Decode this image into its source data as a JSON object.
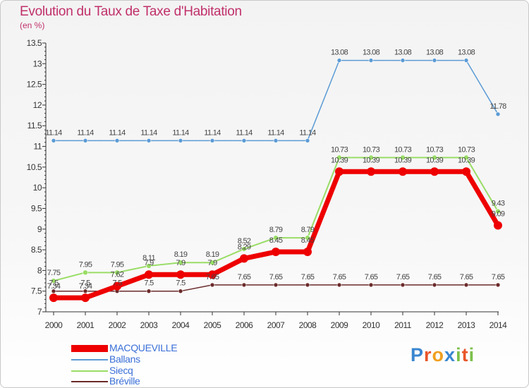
{
  "title": "Evolution du Taux de Taxe d'Habitation",
  "unit": "(en %)",
  "logo": {
    "letters": [
      "P",
      "r",
      "o",
      "x",
      "i",
      "t",
      "i"
    ],
    "colors": [
      "#3a86d0",
      "#e8552a",
      "#f0a020",
      "#3a86d0",
      "#7cc04a",
      "#e8552a",
      "#7cc04a"
    ]
  },
  "chart_data": {
    "type": "line",
    "title": "Evolution du Taux de Taxe d'Habitation",
    "ylabel": "(en %)",
    "xlabel": "",
    "x": [
      "2000",
      "2001",
      "2002",
      "2003",
      "2004",
      "2005",
      "2006",
      "2007",
      "2008",
      "2009",
      "2010",
      "2011",
      "2012",
      "2013",
      "2014"
    ],
    "ylim": [
      7,
      13.5
    ],
    "yticks": [
      "7",
      "7.5",
      "8",
      "8.5",
      "9",
      "9.5",
      "10",
      "10.5",
      "11",
      "11.5",
      "12",
      "12.5",
      "13",
      "13.5"
    ],
    "grid": false,
    "legend": "bottom-left",
    "series": [
      {
        "name": "MACQUEVILLE",
        "color": "#ee0000",
        "values": [
          7.34,
          7.34,
          7.62,
          7.9,
          7.9,
          7.9,
          8.29,
          8.45,
          8.45,
          10.39,
          10.39,
          10.39,
          10.39,
          10.39,
          9.09
        ],
        "labels": [
          "7.34",
          "7.34",
          "7.62",
          "7.9",
          "7.9",
          "7.9",
          "8.29",
          "8.45",
          "8.45",
          "10.39",
          "10.39",
          "10.39",
          "10.39",
          "10.39",
          "9.09"
        ]
      },
      {
        "name": "Ballans",
        "color": "#5b9bd5",
        "values": [
          11.14,
          11.14,
          11.14,
          11.14,
          11.14,
          11.14,
          11.14,
          11.14,
          11.14,
          13.08,
          13.08,
          13.08,
          13.08,
          13.08,
          11.78
        ],
        "labels": [
          "11.14",
          "11.14",
          "11.14",
          "11.14",
          "11.14",
          "11.14",
          "11.14",
          "11.14",
          "11.14",
          "13.08",
          "13.08",
          "13.08",
          "13.08",
          "13.08",
          "11.78"
        ]
      },
      {
        "name": "Siecq",
        "color": "#99dd66",
        "values": [
          7.75,
          7.95,
          7.95,
          8.11,
          8.19,
          8.19,
          8.52,
          8.79,
          8.79,
          10.73,
          10.73,
          10.73,
          10.73,
          10.73,
          9.43
        ],
        "labels": [
          "7.75",
          "7.95",
          "7.95",
          "8.11",
          "8.19",
          "8.19",
          "8.52",
          "8.79",
          "8.79",
          "10.73",
          "10.73",
          "10.73",
          "10.73",
          "10.73",
          "9.43"
        ]
      },
      {
        "name": "Bréville",
        "color": "#6b2a2a",
        "values": [
          7.5,
          7.5,
          7.5,
          7.5,
          7.5,
          7.65,
          7.65,
          7.65,
          7.65,
          7.65,
          7.65,
          7.65,
          7.65,
          7.65,
          7.65
        ],
        "labels": [
          "7.5",
          "7.5",
          "7.5",
          "7.5",
          "7.5",
          "7.65",
          "7.65",
          "7.65",
          "7.65",
          "7.65",
          "7.65",
          "7.65",
          "7.65",
          "7.65",
          "7.65"
        ]
      }
    ]
  }
}
